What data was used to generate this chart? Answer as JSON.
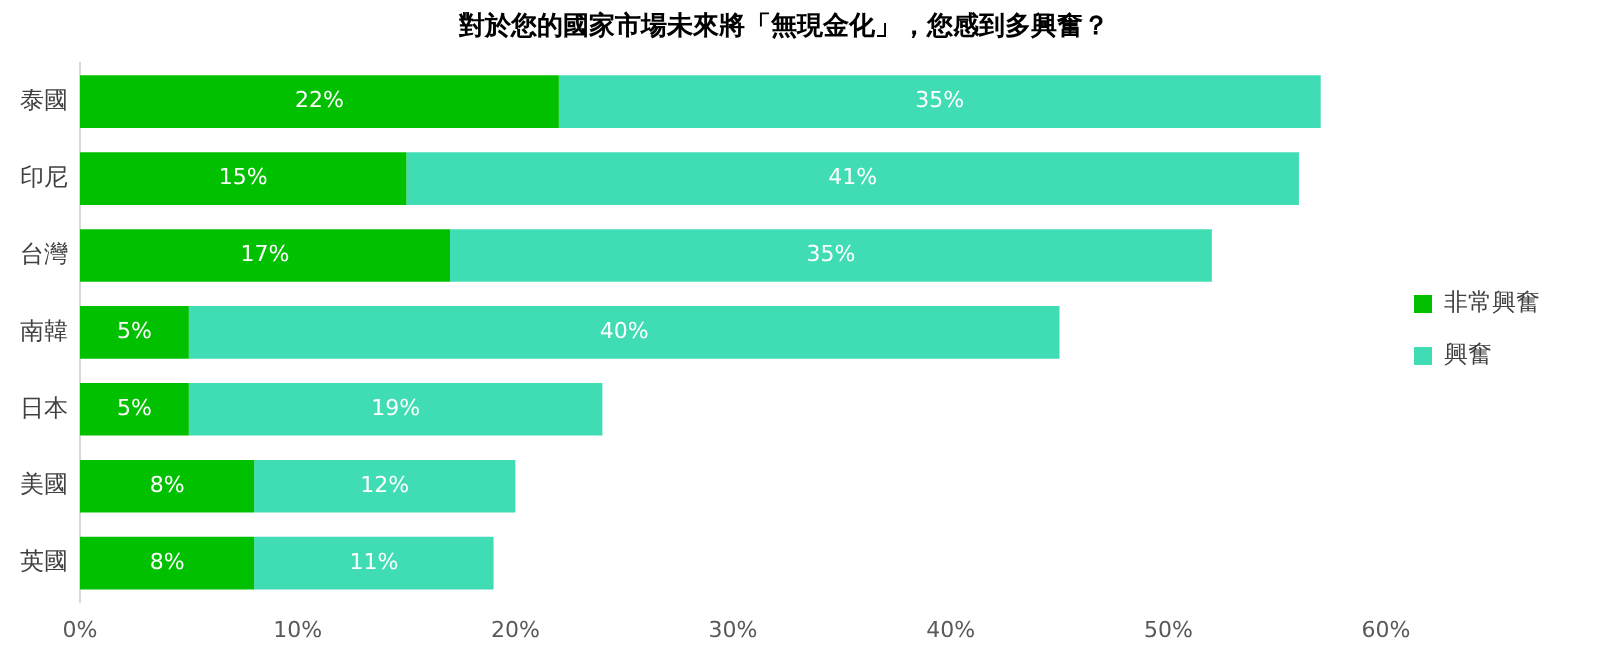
{
  "chart_data": {
    "type": "bar",
    "orientation": "horizontal",
    "stacked": true,
    "title": "對於您的國家市場未來將「無現金化」，您感到多興奮？",
    "categories": [
      "泰國",
      "印尼",
      "台灣",
      "南韓",
      "日本",
      "美國",
      "英國"
    ],
    "series": [
      {
        "name": "非常興奮",
        "color": "#00c000",
        "values": [
          22,
          15,
          17,
          5,
          5,
          8,
          8
        ],
        "value_labels": [
          "22%",
          "15%",
          "17%",
          "5%",
          "5%",
          "8%",
          "8%"
        ]
      },
      {
        "name": "興奮",
        "color": "#40dcb4",
        "values": [
          35,
          41,
          35,
          40,
          19,
          12,
          11
        ],
        "value_labels": [
          "35%",
          "41%",
          "35%",
          "40%",
          "19%",
          "12%",
          "11%"
        ]
      }
    ],
    "xlim": [
      0,
      60
    ],
    "xticks": [
      {
        "value": 0,
        "label": "0%"
      },
      {
        "value": 10,
        "label": "10%"
      },
      {
        "value": 20,
        "label": "20%"
      },
      {
        "value": 30,
        "label": "30%"
      },
      {
        "value": 40,
        "label": "40%"
      },
      {
        "value": 50,
        "label": "50%"
      },
      {
        "value": 60,
        "label": "60%"
      }
    ],
    "grid": false,
    "legend": "right"
  }
}
